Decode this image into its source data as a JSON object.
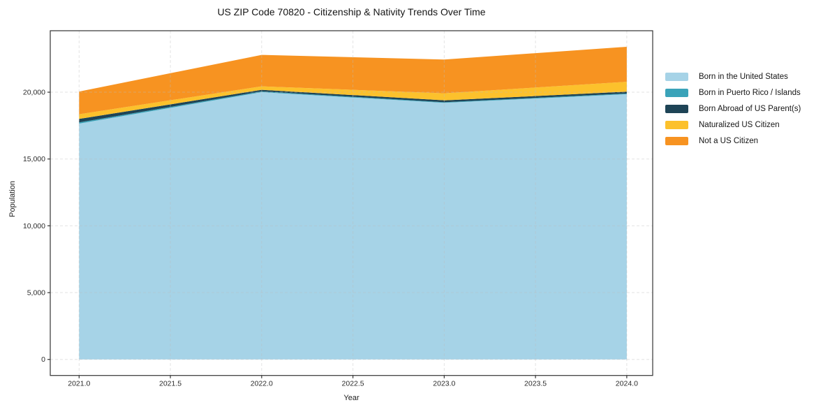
{
  "chart_data": {
    "type": "area",
    "stacked": true,
    "title": "US ZIP Code 70820 - Citizenship & Nativity Trends Over Time",
    "xlabel": "Year",
    "ylabel": "Population",
    "x": [
      2021,
      2022,
      2023,
      2024
    ],
    "series": [
      {
        "name": "Born in the United States",
        "color": "#a6d3e7",
        "values": [
          17650,
          20000,
          19200,
          19850
        ]
      },
      {
        "name": "Born in Puerto Rico / Islands",
        "color": "#3aa3b9",
        "values": [
          90,
          60,
          50,
          50
        ]
      },
      {
        "name": "Born Abroad of US Parent(s)",
        "color": "#1e4456",
        "values": [
          260,
          120,
          140,
          140
        ]
      },
      {
        "name": "Naturalized US Citizen",
        "color": "#fcc12c",
        "values": [
          350,
          260,
          530,
          740
        ]
      },
      {
        "name": "Not a US Citizen",
        "color": "#f79321",
        "values": [
          1700,
          2350,
          2520,
          2620
        ]
      }
    ],
    "xticks": {
      "values": [
        2021.0,
        2021.5,
        2022.0,
        2022.5,
        2023.0,
        2023.5,
        2024.0
      ],
      "labels": [
        "2021.0",
        "2021.5",
        "2022.0",
        "2022.5",
        "2023.0",
        "2023.5",
        "2024.0"
      ]
    },
    "yticks": {
      "values": [
        0,
        5000,
        10000,
        15000,
        20000
      ],
      "labels": [
        "0",
        "5,000",
        "10,000",
        "15,000",
        "20,000"
      ]
    },
    "xlim": [
      2020.842,
      2024.142
    ],
    "ylim": [
      -1200,
      24600
    ],
    "grid": true,
    "legend_position": "right-outside",
    "colors": {
      "spine": "#333333",
      "tick_label": "#2b2b2b",
      "gridline": "#bdbdbd"
    }
  }
}
